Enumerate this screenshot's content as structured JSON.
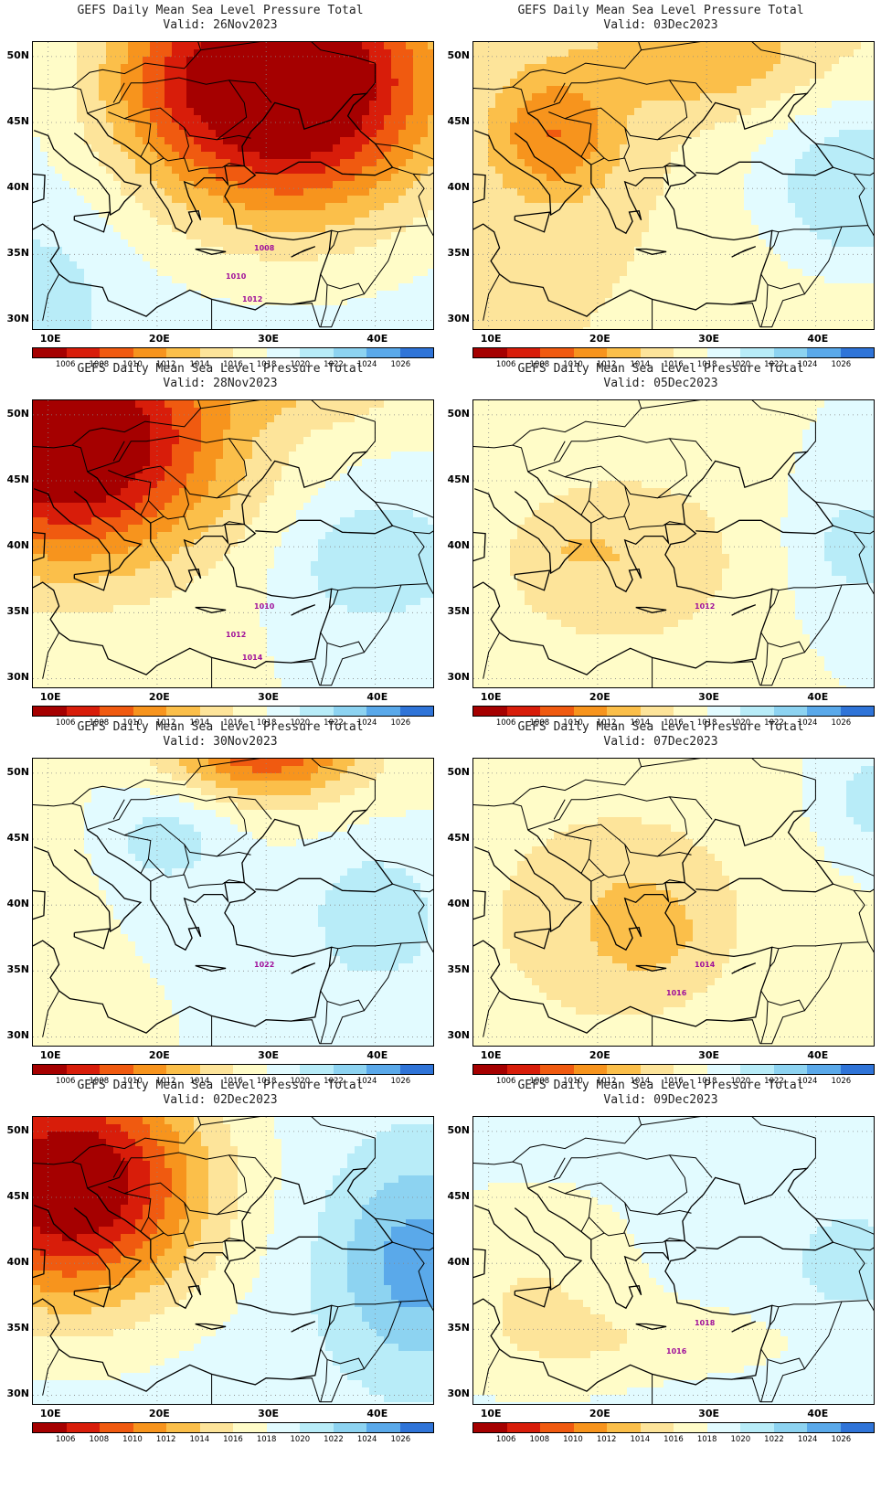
{
  "title_prefix": "GEFS Daily Mean Sea Level Pressure Total",
  "panels": [
    {
      "title": "GEFS Daily Mean Sea Level Pressure Total",
      "valid": "Valid: 26Nov2023",
      "scenario": "deep_low_north",
      "labels": [
        "1008",
        "1010",
        "1012"
      ]
    },
    {
      "title": "GEFS Daily Mean Sea Level Pressure Total",
      "valid": "Valid: 03Dec2023",
      "scenario": "low_nw_high_se",
      "labels": []
    },
    {
      "title": "GEFS Daily Mean Sea Level Pressure Total",
      "valid": "Valid: 28Nov2023",
      "scenario": "low_nw_strong",
      "labels": [
        "1010",
        "1012",
        "1014"
      ]
    },
    {
      "title": "GEFS Daily Mean Sea Level Pressure Total",
      "valid": "Valid: 05Dec2023",
      "scenario": "mild_central",
      "labels": [
        "1012"
      ]
    },
    {
      "title": "GEFS Daily Mean Sea Level Pressure Total",
      "valid": "Valid: 30Nov2023",
      "scenario": "low_north_high_east",
      "labels": [
        "1022"
      ]
    },
    {
      "title": "GEFS Daily Mean Sea Level Pressure Total",
      "valid": "Valid: 07Dec2023",
      "scenario": "mild_greece",
      "labels": [
        "1014",
        "1016"
      ]
    },
    {
      "title": "GEFS Daily Mean Sea Level Pressure Total",
      "valid": "Valid: 02Dec2023",
      "scenario": "low_nw_strong2",
      "labels": []
    },
    {
      "title": "GEFS Daily Mean Sea Level Pressure Total",
      "valid": "Valid: 09Dec2023",
      "scenario": "high_north",
      "labels": [
        "1018",
        "1016"
      ]
    }
  ],
  "axes": {
    "lat_labels": [
      "50N",
      "45N",
      "40N",
      "35N",
      "30N"
    ],
    "lon_labels": [
      "10E",
      "20E",
      "30E",
      "40E"
    ]
  },
  "colorbar": {
    "labels": [
      "1006",
      "1008",
      "1010",
      "1012",
      "1014",
      "1016",
      "1018",
      "1020",
      "1022",
      "1024",
      "1026"
    ],
    "colors": [
      "#a50000",
      "#d81d0a",
      "#f05a10",
      "#f7941d",
      "#fbbf4a",
      "#fde49a",
      "#fffcc8",
      "#e2fbff",
      "#b8ecf8",
      "#8dd3f1",
      "#5aa9ea",
      "#2f74d8"
    ]
  }
}
